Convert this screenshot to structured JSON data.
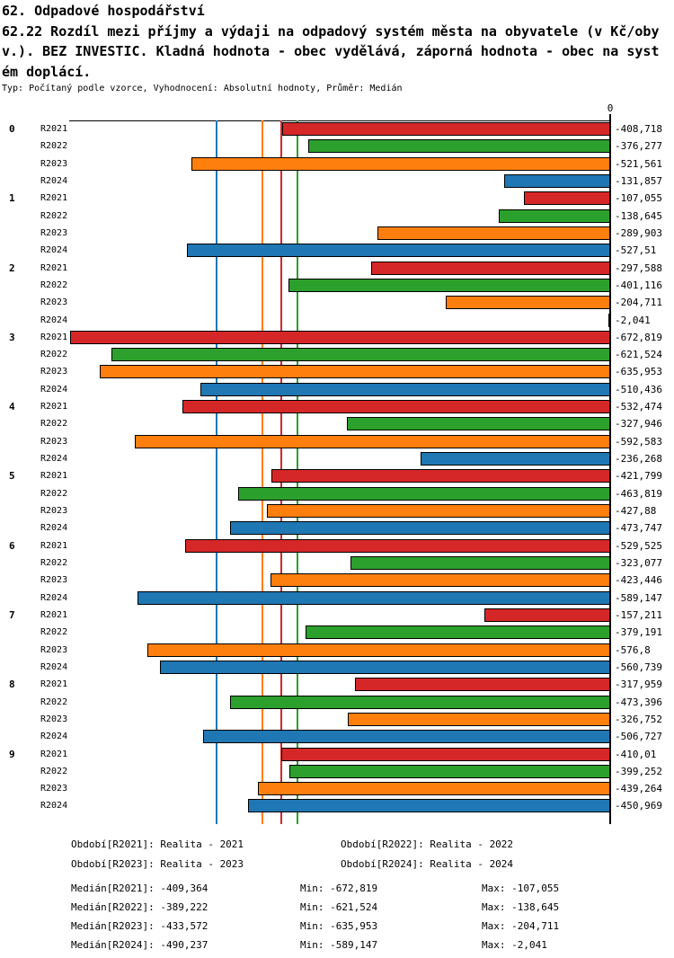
{
  "header": {
    "title_line1": "62. Odpadové hospodářství",
    "title_line2": "62.22 Rozdíl mezi příjmy a výdaji na odpadový systém města na obyvatele (v Kč/oby",
    "title_line3": "v.). BEZ INVESTIC. Kladná hodnota - obec vydělává, záporná hodnota - obec na syst",
    "title_line4": "ém doplácí.",
    "meta": "Typ: Počítaný podle vzorce, Vyhodnocení: Absolutní hodnoty, Průměr: Medián"
  },
  "chart_data": {
    "type": "bar",
    "orientation": "horizontal",
    "title": "62.22 Rozdíl mezi příjmy a výdaji na odpadový systém města na obyvatele (v Kč/obyv.). BEZ INVESTIC.",
    "axis_zero_label": "0",
    "xlim": [
      -674,
      0
    ],
    "grid": false,
    "years": [
      "R2021",
      "R2022",
      "R2023",
      "R2024"
    ],
    "colors": {
      "R2021": "#d62728",
      "R2022": "#2ca02c",
      "R2023": "#ff7f0e",
      "R2024": "#1f77b4"
    },
    "groups": [
      {
        "label": "0",
        "bars": [
          {
            "year": "R2021",
            "value": -408.718,
            "label": "-408,718"
          },
          {
            "year": "R2022",
            "value": -376.277,
            "label": "-376,277"
          },
          {
            "year": "R2023",
            "value": -521.561,
            "label": "-521,561"
          },
          {
            "year": "R2024",
            "value": -131.857,
            "label": "-131,857"
          }
        ]
      },
      {
        "label": "1",
        "bars": [
          {
            "year": "R2021",
            "value": -107.055,
            "label": "-107,055"
          },
          {
            "year": "R2022",
            "value": -138.645,
            "label": "-138,645"
          },
          {
            "year": "R2023",
            "value": -289.903,
            "label": "-289,903"
          },
          {
            "year": "R2024",
            "value": -527.51,
            "label": "-527,51"
          }
        ]
      },
      {
        "label": "2",
        "bars": [
          {
            "year": "R2021",
            "value": -297.588,
            "label": "-297,588"
          },
          {
            "year": "R2022",
            "value": -401.116,
            "label": "-401,116"
          },
          {
            "year": "R2023",
            "value": -204.711,
            "label": "-204,711"
          },
          {
            "year": "R2024",
            "value": -2.041,
            "label": "-2,041"
          }
        ]
      },
      {
        "label": "3",
        "bars": [
          {
            "year": "R2021",
            "value": -672.819,
            "label": "-672,819"
          },
          {
            "year": "R2022",
            "value": -621.524,
            "label": "-621,524"
          },
          {
            "year": "R2023",
            "value": -635.953,
            "label": "-635,953"
          },
          {
            "year": "R2024",
            "value": -510.436,
            "label": "-510,436"
          }
        ]
      },
      {
        "label": "4",
        "bars": [
          {
            "year": "R2021",
            "value": -532.474,
            "label": "-532,474"
          },
          {
            "year": "R2022",
            "value": -327.946,
            "label": "-327,946"
          },
          {
            "year": "R2023",
            "value": -592.583,
            "label": "-592,583"
          },
          {
            "year": "R2024",
            "value": -236.268,
            "label": "-236,268"
          }
        ]
      },
      {
        "label": "5",
        "bars": [
          {
            "year": "R2021",
            "value": -421.799,
            "label": "-421,799"
          },
          {
            "year": "R2022",
            "value": -463.819,
            "label": "-463,819"
          },
          {
            "year": "R2023",
            "value": -427.88,
            "label": "-427,88"
          },
          {
            "year": "R2024",
            "value": -473.747,
            "label": "-473,747"
          }
        ]
      },
      {
        "label": "6",
        "bars": [
          {
            "year": "R2021",
            "value": -529.525,
            "label": "-529,525"
          },
          {
            "year": "R2022",
            "value": -323.077,
            "label": "-323,077"
          },
          {
            "year": "R2023",
            "value": -423.446,
            "label": "-423,446"
          },
          {
            "year": "R2024",
            "value": -589.147,
            "label": "-589,147"
          }
        ]
      },
      {
        "label": "7",
        "bars": [
          {
            "year": "R2021",
            "value": -157.211,
            "label": "-157,211"
          },
          {
            "year": "R2022",
            "value": -379.191,
            "label": "-379,191"
          },
          {
            "year": "R2023",
            "value": -576.8,
            "label": "-576,8"
          },
          {
            "year": "R2024",
            "value": -560.739,
            "label": "-560,739"
          }
        ]
      },
      {
        "label": "8",
        "bars": [
          {
            "year": "R2021",
            "value": -317.959,
            "label": "-317,959"
          },
          {
            "year": "R2022",
            "value": -473.396,
            "label": "-473,396"
          },
          {
            "year": "R2023",
            "value": -326.752,
            "label": "-326,752"
          },
          {
            "year": "R2024",
            "value": -506.727,
            "label": "-506,727"
          }
        ]
      },
      {
        "label": "9",
        "bars": [
          {
            "year": "R2021",
            "value": -410.01,
            "label": "-410,01"
          },
          {
            "year": "R2022",
            "value": -399.252,
            "label": "-399,252"
          },
          {
            "year": "R2023",
            "value": -439.264,
            "label": "-439,264"
          },
          {
            "year": "R2024",
            "value": -450.969,
            "label": "-450,969"
          }
        ]
      }
    ],
    "median_lines": [
      {
        "year": "R2024",
        "value": -490.237,
        "color": "#1f77b4"
      },
      {
        "year": "R2023",
        "value": -433.572,
        "color": "#ff7f0e"
      },
      {
        "year": "R2021",
        "value": -409.364,
        "color": "#d62728"
      },
      {
        "year": "R2022",
        "value": -389.222,
        "color": "#2ca02c"
      }
    ]
  },
  "footer": {
    "periods": [
      "Období[R2021]: Realita - 2021",
      "Období[R2022]: Realita - 2022",
      "Období[R2023]: Realita - 2023",
      "Období[R2024]: Realita - 2024"
    ],
    "stats": [
      {
        "median": "Medián[R2021]: -409,364",
        "min": "Min: -672,819",
        "max": "Max: -107,055"
      },
      {
        "median": "Medián[R2022]: -389,222",
        "min": "Min: -621,524",
        "max": "Max: -138,645"
      },
      {
        "median": "Medián[R2023]: -433,572",
        "min": "Min: -635,953",
        "max": "Max: -204,711"
      },
      {
        "median": "Medián[R2024]: -490,237",
        "min": "Min: -589,147",
        "max": "Max: -2,041"
      }
    ]
  }
}
